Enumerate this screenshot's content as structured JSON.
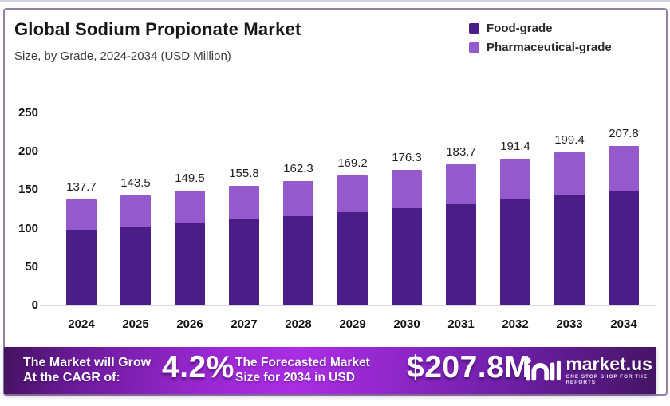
{
  "title": "Global Sodium Propionate Market",
  "subtitle": "Size, by Grade, 2024-2034 (USD Million)",
  "legend": [
    {
      "label": "Food-grade",
      "color": "#4A1D87"
    },
    {
      "label": "Pharmaceutical-grade",
      "color": "#9559CE"
    }
  ],
  "chart_data": {
    "type": "bar",
    "stacked": true,
    "title": "Global Sodium Propionate Market",
    "subtitle": "Size, by Grade, 2024-2034 (USD Million)",
    "categories": [
      "2024",
      "2025",
      "2026",
      "2027",
      "2028",
      "2029",
      "2030",
      "2031",
      "2032",
      "2033",
      "2034"
    ],
    "totals": [
      137.7,
      143.5,
      149.5,
      155.8,
      162.3,
      169.2,
      176.3,
      183.7,
      191.4,
      199.4,
      207.8
    ],
    "series": [
      {
        "name": "Food-grade",
        "color": "#4A1D87",
        "values": [
          99.0,
          103.2,
          107.5,
          112.0,
          116.7,
          121.7,
          126.8,
          132.1,
          137.6,
          143.4,
          149.4
        ],
        "note": "segment split estimated from bar pixel heights (~72% of total)"
      },
      {
        "name": "Pharmaceutical-grade",
        "color": "#9559CE",
        "values": [
          38.7,
          40.3,
          42.0,
          43.8,
          45.6,
          47.5,
          49.5,
          51.6,
          53.8,
          56.0,
          58.4
        ],
        "note": "segment split estimated from bar pixel heights (~28% of total)"
      }
    ],
    "xlabel": "",
    "ylabel": "",
    "yticks": [
      0,
      50,
      100,
      150,
      200,
      250
    ],
    "ylim": [
      0,
      250
    ],
    "grid": false,
    "legend_position": "top-right",
    "value_labels": "total shown above each bar"
  },
  "banner": {
    "cagr_label_line1": "The Market will Grow",
    "cagr_label_line2": "At the CAGR of:",
    "cagr_value": "4.2%",
    "forecast_label_line1": "The Forecasted Market",
    "forecast_label_line2": "Size for 2034 in USD",
    "forecast_value": "$207.8M",
    "brand_name": "market.us",
    "brand_tagline": "ONE STOP SHOP FOR THE REPORTS"
  }
}
